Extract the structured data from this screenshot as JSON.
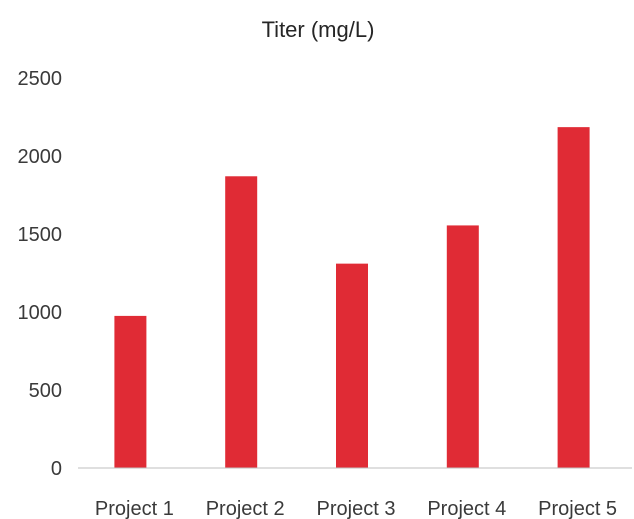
{
  "chart_data": {
    "type": "bar",
    "title": "Titer (mg/L)",
    "xlabel": "",
    "ylabel": "",
    "categories": [
      "Project 1",
      "Project 2",
      "Project 3",
      "Project 4",
      "Project 5"
    ],
    "series": [
      {
        "values": [
          975,
          1870,
          1310,
          1555,
          2185
        ],
        "color": "#e02b35"
      }
    ],
    "ylim": [
      0,
      2500
    ],
    "yticks": [
      0,
      500,
      1000,
      1500,
      2000,
      2500
    ],
    "grid": false,
    "legend": "none",
    "axis_color": "#bfbfbf",
    "text_color": "#3a3a3a"
  }
}
